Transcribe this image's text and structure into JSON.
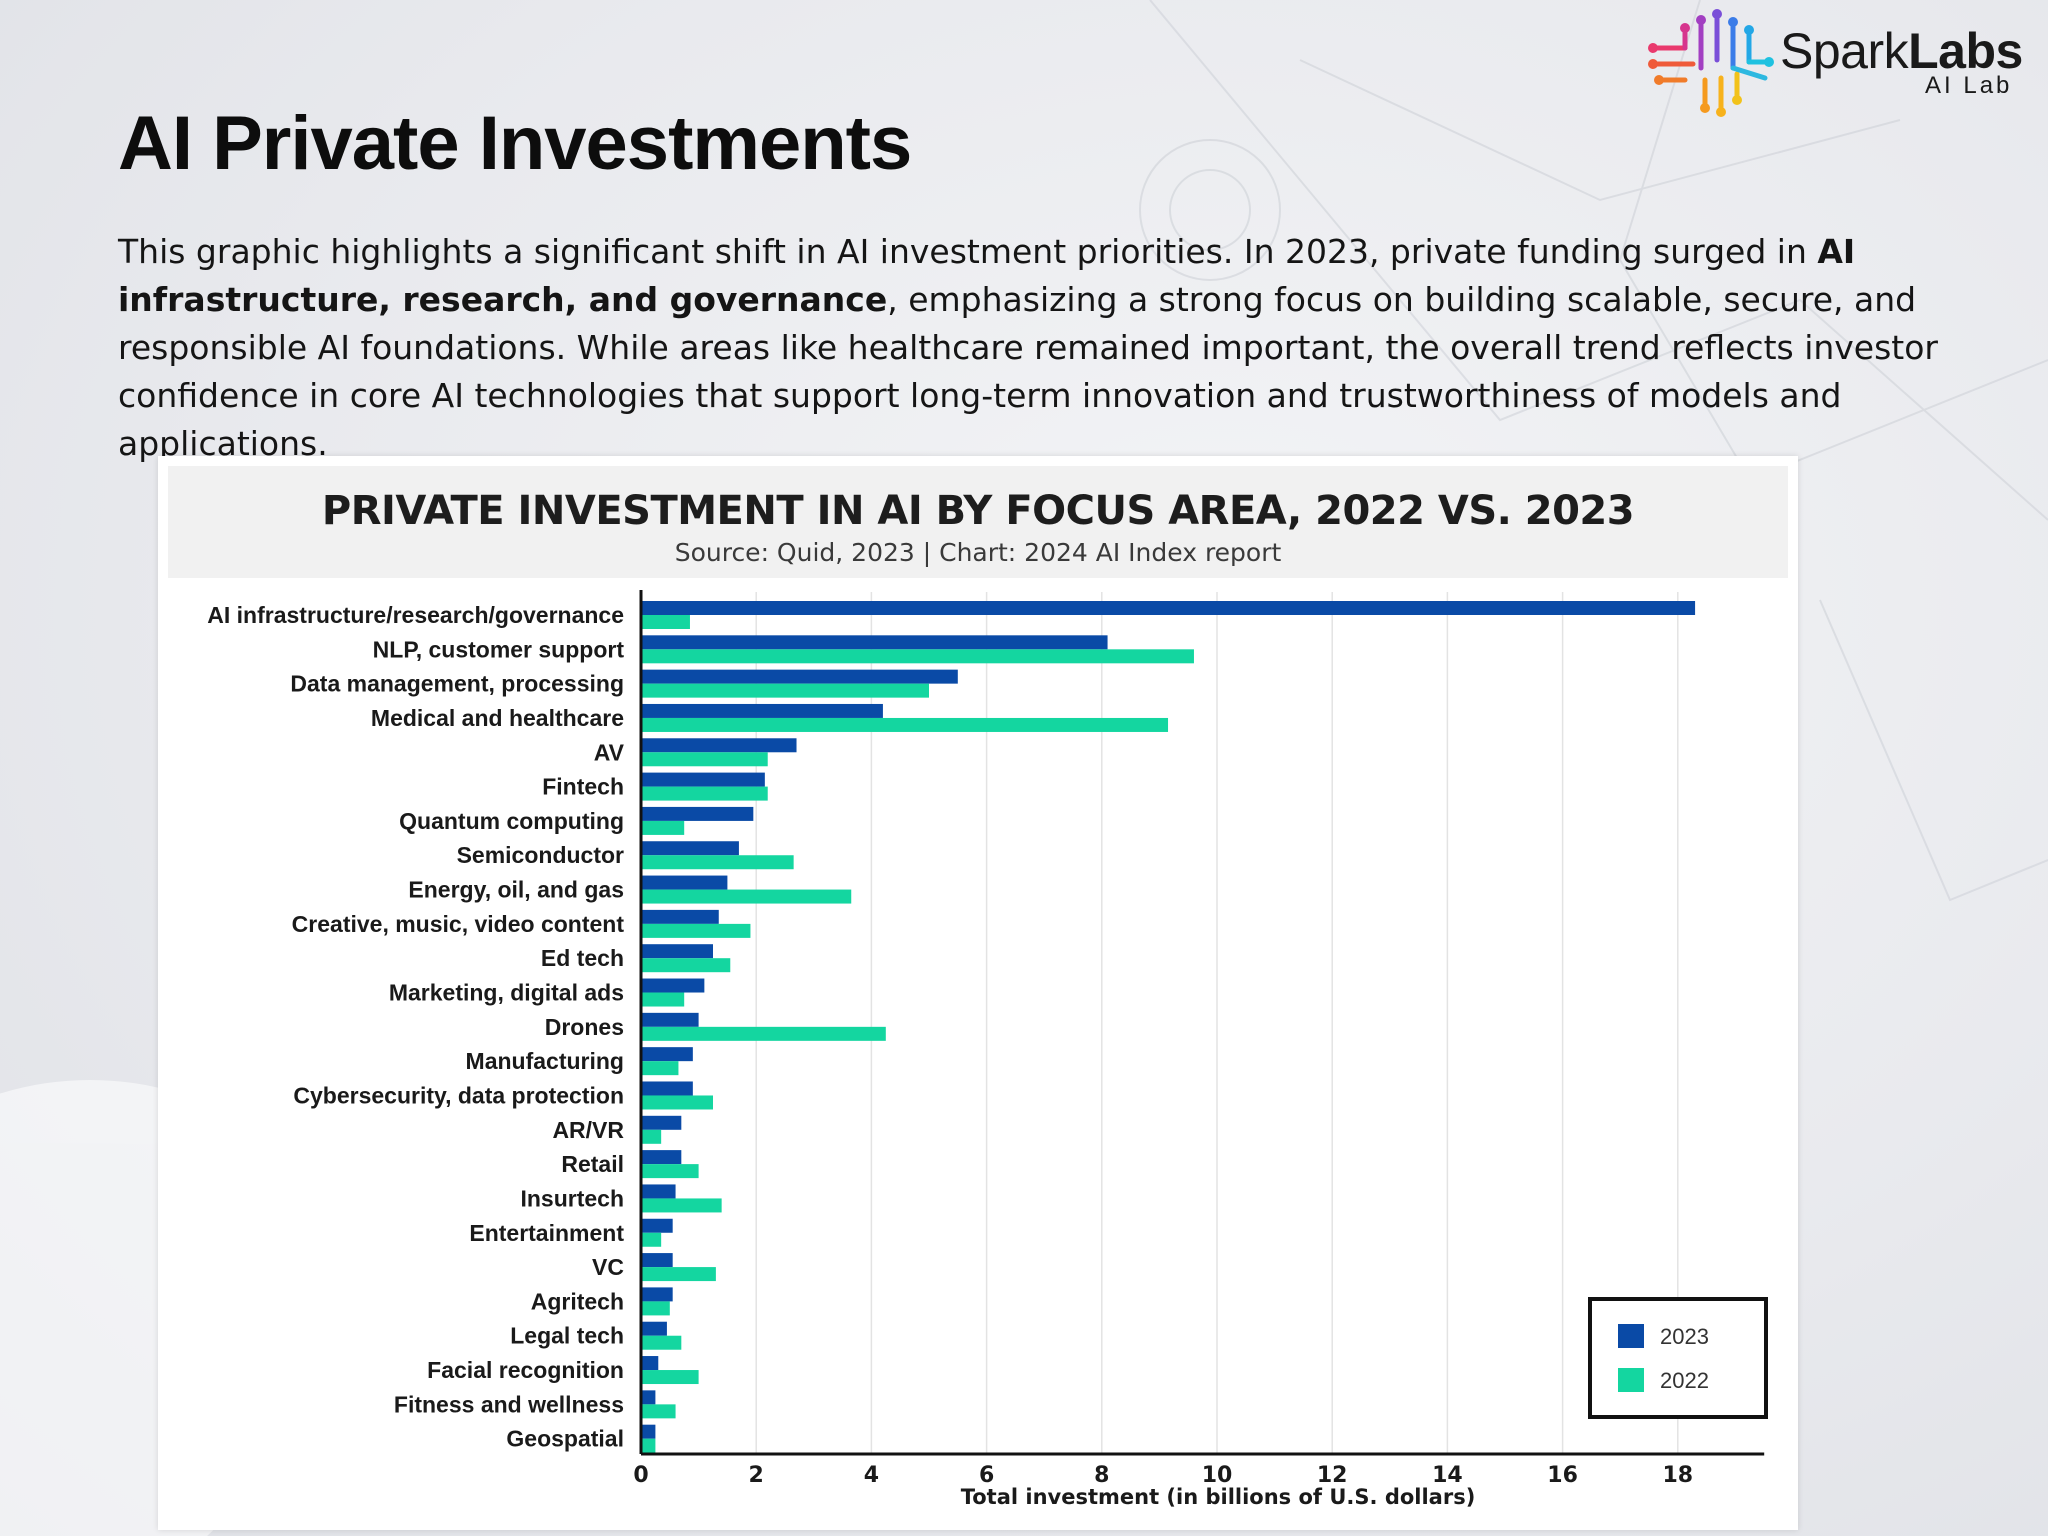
{
  "brand": {
    "name_light": "Spark",
    "name_bold": "Labs",
    "sub": "AI Lab"
  },
  "page": {
    "title": "AI Private Investments",
    "intro_pre": "This graphic highlights a significant shift in AI investment priorities. In 2023, private funding surged in ",
    "intro_bold": "AI infrastructure, research, and governance",
    "intro_post": ", emphasizing a strong focus on building scalable, secure, and responsible AI foundations. While areas like healthcare remained important, the overall trend reflects investor confidence in core AI technologies that support long-term innovation and trustworthiness of models and applications."
  },
  "chart_data": {
    "type": "bar",
    "orientation": "horizontal",
    "title": "PRIVATE INVESTMENT IN AI BY FOCUS AREA, 2022 VS. 2023",
    "subtitle": "Source: Quid, 2023 | Chart: 2024 AI Index report",
    "xlabel": "Total investment (in billions of U.S. dollars)",
    "ylabel": "",
    "xlim": [
      0,
      19.5
    ],
    "xticks": [
      0,
      2,
      4,
      6,
      8,
      10,
      12,
      14,
      16,
      18
    ],
    "grid": "vertical",
    "legend_position": "bottom-right",
    "categories": [
      "AI infrastructure/research/governance",
      "NLP, customer support",
      "Data management, processing",
      "Medical and healthcare",
      "AV",
      "Fintech",
      "Quantum computing",
      "Semiconductor",
      "Energy, oil, and gas",
      "Creative, music, video content",
      "Ed tech",
      "Marketing, digital ads",
      "Drones",
      "Manufacturing",
      "Cybersecurity, data protection",
      "AR/VR",
      "Retail",
      "Insurtech",
      "Entertainment",
      "VC",
      "Agritech",
      "Legal tech",
      "Facial recognition",
      "Fitness and wellness",
      "Geospatial"
    ],
    "series": [
      {
        "name": "2023",
        "color": "#0a4aa6",
        "values": [
          18.3,
          8.1,
          5.5,
          4.2,
          2.7,
          2.15,
          1.95,
          1.7,
          1.5,
          1.35,
          1.25,
          1.1,
          1.0,
          0.9,
          0.9,
          0.7,
          0.7,
          0.6,
          0.55,
          0.55,
          0.55,
          0.45,
          0.3,
          0.25,
          0.25
        ]
      },
      {
        "name": "2022",
        "color": "#14d6a0",
        "values": [
          0.85,
          9.6,
          5.0,
          9.15,
          2.2,
          2.2,
          0.75,
          2.65,
          3.65,
          1.9,
          1.55,
          0.75,
          4.25,
          0.65,
          1.25,
          0.35,
          1.0,
          1.4,
          0.35,
          1.3,
          0.5,
          0.7,
          1.0,
          0.6,
          0.25
        ]
      }
    ]
  }
}
